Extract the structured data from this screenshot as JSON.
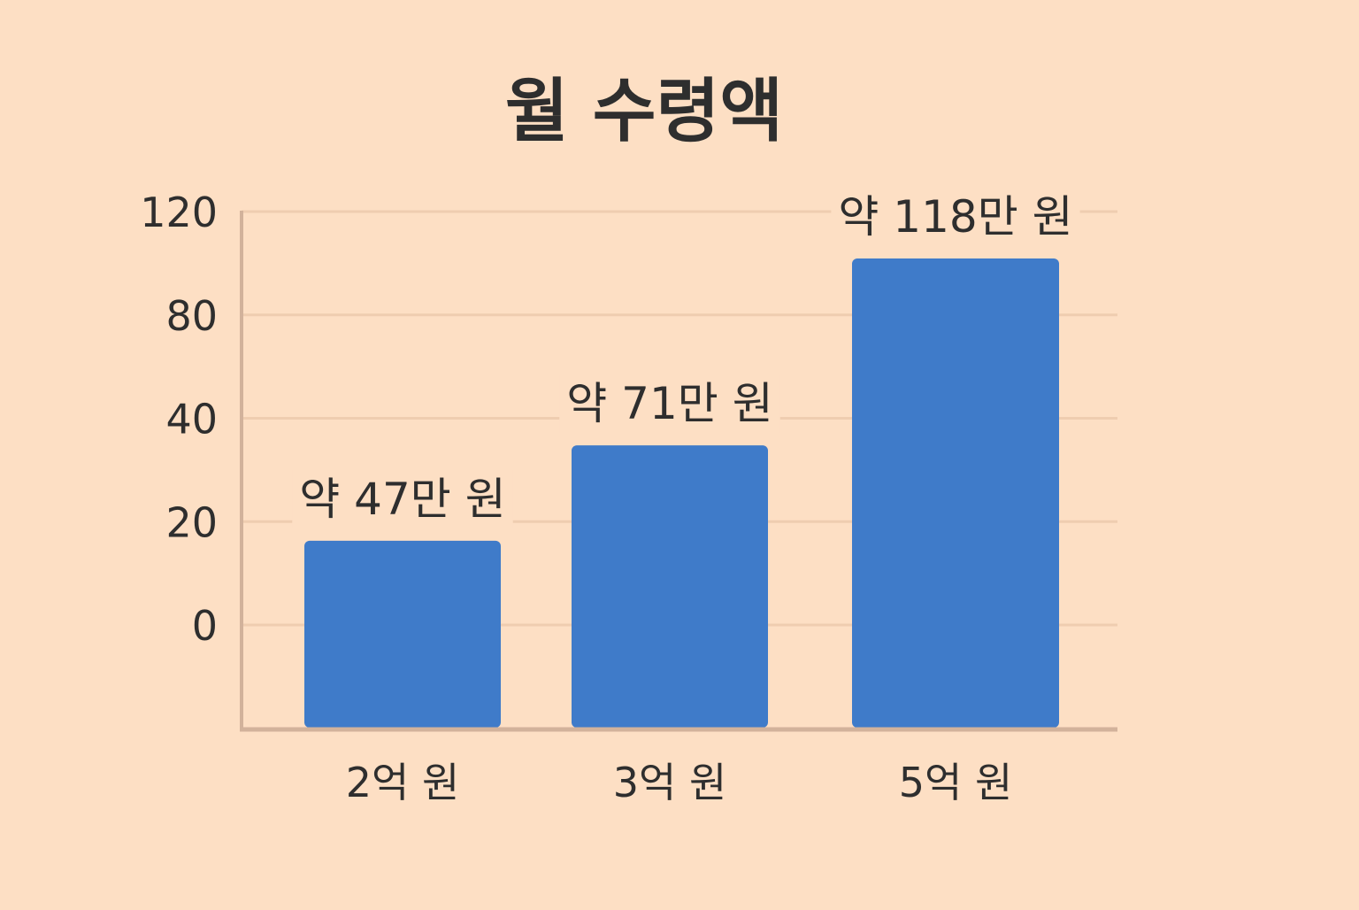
{
  "chart_data": {
    "type": "bar",
    "title": "월 수령액",
    "xlabel": "",
    "ylabel": "",
    "categories": [
      "2억 원",
      "3억 원",
      "5억 원"
    ],
    "values": [
      47,
      71,
      118
    ],
    "value_labels": [
      "약 47만 원",
      "약 71만 원",
      "약 118만 원"
    ],
    "y_ticks": [
      "0",
      "20",
      "40",
      "80",
      "120"
    ],
    "grid": true,
    "legend": "none",
    "colors": {
      "background": "#fddfc4",
      "bar": "#3f7bc9",
      "grid": "#efcdb0",
      "axis": "#d2b29b",
      "text": "#2e2e2e"
    }
  }
}
